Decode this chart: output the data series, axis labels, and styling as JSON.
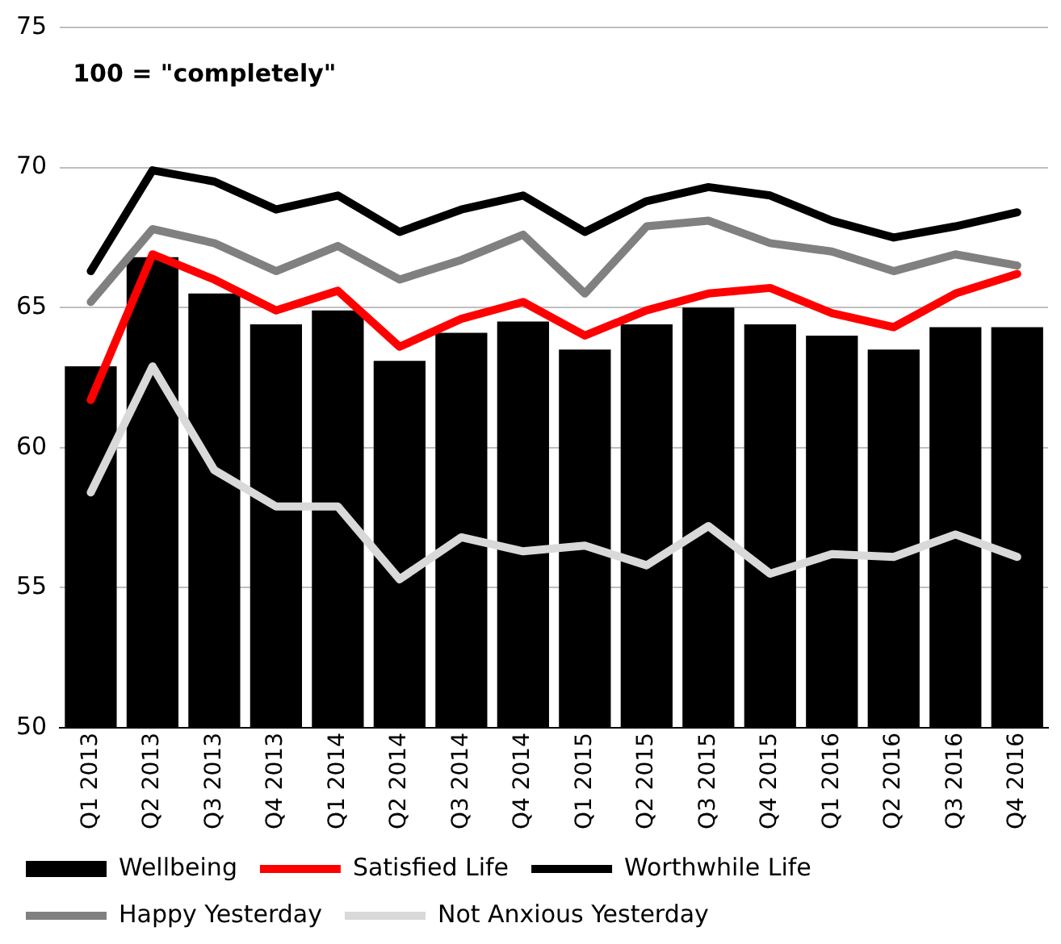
{
  "chart_data": {
    "type": "bar",
    "categories": [
      "Q1 2013",
      "Q2 2013",
      "Q3 2013",
      "Q4 2013",
      "Q1 2014",
      "Q2 2014",
      "Q3 2014",
      "Q4 2014",
      "Q1 2015",
      "Q2 2015",
      "Q3 2015",
      "Q4 2015",
      "Q1 2016",
      "Q2 2016",
      "Q3 2016",
      "Q4 2016"
    ],
    "series": [
      {
        "name": "Wellbeing",
        "color": "#000000",
        "values": [
          62.9,
          66.8,
          65.5,
          64.4,
          64.9,
          63.1,
          64.1,
          64.5,
          63.5,
          64.4,
          65.0,
          64.4,
          64.0,
          63.5,
          64.3,
          64.3
        ]
      },
      {
        "name": "Satisfied Life",
        "type": "line",
        "color": "#ff0000",
        "values": [
          61.7,
          66.9,
          66.0,
          64.9,
          65.6,
          63.6,
          64.6,
          65.2,
          64.0,
          64.9,
          65.5,
          65.7,
          64.8,
          64.3,
          65.5,
          66.2
        ]
      },
      {
        "name": "Worthwhile Life",
        "type": "line",
        "color": "#000000",
        "values": [
          66.3,
          69.9,
          69.5,
          68.5,
          69.0,
          67.7,
          68.5,
          69.0,
          67.7,
          68.8,
          69.3,
          69.0,
          68.1,
          67.5,
          67.9,
          68.4
        ]
      },
      {
        "name": "Happy Yesterday",
        "type": "line",
        "color": "#808080",
        "values": [
          65.2,
          67.8,
          67.3,
          66.3,
          67.2,
          66.0,
          66.7,
          67.6,
          65.5,
          67.9,
          68.1,
          67.3,
          67.0,
          66.3,
          66.9,
          66.5
        ]
      },
      {
        "name": "Not Anxious Yesterday",
        "type": "line",
        "color": "#d9d9d9",
        "values": [
          58.4,
          62.9,
          59.2,
          57.9,
          57.9,
          55.3,
          56.8,
          56.3,
          56.5,
          55.8,
          57.2,
          55.5,
          56.2,
          56.1,
          56.9,
          56.1
        ]
      }
    ],
    "ylim": [
      50,
      75
    ],
    "yticks": [
      50,
      55,
      60,
      65,
      70,
      75
    ],
    "grid": "y",
    "legend": "bottom",
    "marker": "none",
    "line_style": "solid",
    "annotations": [
      "100 = \"completely\""
    ]
  }
}
